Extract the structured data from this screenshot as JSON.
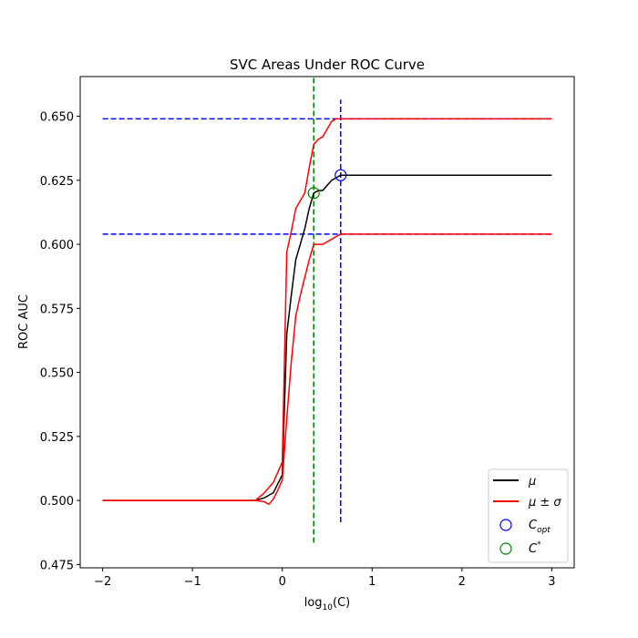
{
  "chart_data": {
    "type": "line",
    "title": "SVC Areas Under ROC Curve",
    "xlabel": "log",
    "xlabel_sub": "10",
    "xlabel_arg": "(C)",
    "ylabel": "ROC AUC",
    "xlim": [
      -2.25,
      3.25
    ],
    "ylim": [
      0.4737,
      0.6655
    ],
    "xticks": [
      -2,
      -1,
      0,
      1,
      2,
      3
    ],
    "xtick_labels": [
      "−2",
      "−1",
      "0",
      "1",
      "2",
      "3"
    ],
    "yticks": [
      0.475,
      0.5,
      0.525,
      0.55,
      0.575,
      0.6,
      0.625,
      0.65
    ],
    "ytick_labels": [
      "0.475",
      "0.500",
      "0.525",
      "0.550",
      "0.575",
      "0.600",
      "0.625",
      "0.650"
    ],
    "grid": false,
    "legend_position": "bottom-right",
    "legend": [
      {
        "label": "μ",
        "kind": "line",
        "color": "#000000"
      },
      {
        "label": "μ ± σ",
        "kind": "line",
        "color": "#ff0000"
      },
      {
        "label": "C_opt",
        "label_main": "C",
        "label_sub": "opt",
        "kind": "circle",
        "color": "#0000ff"
      },
      {
        "label": "C*",
        "label_main": "C",
        "label_sup": "*",
        "kind": "circle",
        "color": "#008000"
      }
    ],
    "series": [
      {
        "name": "μ",
        "color": "#000000",
        "x": [
          -2,
          -0.3,
          -0.2,
          -0.1,
          0,
          0.05,
          0.1,
          0.15,
          0.2,
          0.25,
          0.3,
          0.35,
          0.4,
          0.45,
          0.5,
          0.55,
          0.6,
          0.65,
          0.7,
          1,
          2,
          3
        ],
        "y": [
          0.5,
          0.5,
          0.501,
          0.503,
          0.51,
          0.565,
          0.58,
          0.594,
          0.6,
          0.606,
          0.614,
          0.62,
          0.621,
          0.621,
          0.623,
          0.625,
          0.626,
          0.627,
          0.627,
          0.627,
          0.627,
          0.627
        ]
      },
      {
        "name": "μ + σ",
        "color": "#ff0000",
        "x": [
          -2,
          -0.3,
          -0.2,
          -0.1,
          -0.05,
          0,
          0.05,
          0.1,
          0.15,
          0.2,
          0.25,
          0.3,
          0.35,
          0.4,
          0.45,
          0.5,
          0.55,
          0.6,
          0.65,
          0.7,
          1,
          2,
          3
        ],
        "y": [
          0.5,
          0.5,
          0.503,
          0.507,
          0.511,
          0.515,
          0.597,
          0.605,
          0.614,
          0.617,
          0.62,
          0.63,
          0.639,
          0.641,
          0.642,
          0.645,
          0.648,
          0.649,
          0.649,
          0.649,
          0.649,
          0.649,
          0.649
        ]
      },
      {
        "name": "μ − σ",
        "color": "#ff0000",
        "x": [
          -2,
          -0.3,
          -0.2,
          -0.15,
          -0.1,
          -0.05,
          0,
          0.05,
          0.1,
          0.15,
          0.2,
          0.25,
          0.3,
          0.35,
          0.4,
          0.45,
          0.5,
          0.55,
          0.6,
          0.65,
          0.7,
          1,
          2,
          3
        ],
        "y": [
          0.5,
          0.5,
          0.4995,
          0.4985,
          0.5005,
          0.504,
          0.508,
          0.532,
          0.554,
          0.572,
          0.58,
          0.587,
          0.594,
          0.6,
          0.6,
          0.6,
          0.601,
          0.602,
          0.603,
          0.604,
          0.604,
          0.604,
          0.604,
          0.604
        ]
      }
    ],
    "markers": [
      {
        "name": "C_opt",
        "x": 0.65,
        "y": 0.627,
        "color": "#0000ff"
      },
      {
        "name": "C*",
        "x": 0.35,
        "y": 0.62,
        "color": "#008000"
      }
    ],
    "hlines": [
      {
        "y": 0.649,
        "x0": -2,
        "x1": 3,
        "color": "#0000ff",
        "dashed": true
      },
      {
        "y": 0.604,
        "x0": -2,
        "x1": 3,
        "color": "#0000ff",
        "dashed": true
      }
    ],
    "vlines": [
      {
        "x": 0.65,
        "y0": 0.4915,
        "y1": 0.6565,
        "color": "#0000ff",
        "dashed": true
      },
      {
        "x": 0.35,
        "y0": 0.4835,
        "y1": 0.665,
        "color": "#008000",
        "dashed": true
      }
    ]
  }
}
